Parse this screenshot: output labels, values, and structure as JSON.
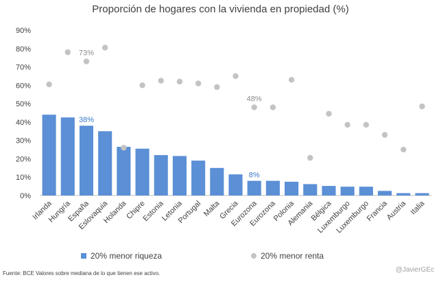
{
  "title": "Proporción de hogares con la vivienda en propiedad  (%)",
  "source": "Fuente: BCE Valores sobre mediana  de lo que tienen ese activo.",
  "credit": "@JavierGEc",
  "legend": {
    "bar_label": "20% menor riqueza",
    "dot_label": "20% menor renta"
  },
  "colors": {
    "bar": "#5b8fd6",
    "dot": "#c3c3c3",
    "axis_text": "#404040",
    "highlight": "#3a7bc8"
  },
  "chart_data": {
    "type": "bar",
    "title": "Proporción de hogares con la vivienda en propiedad  (%)",
    "xlabel": "",
    "ylabel": "",
    "ylim": [
      0,
      90
    ],
    "yticks": [
      "0%",
      "10%",
      "20%",
      "30%",
      "40%",
      "50%",
      "60%",
      "70%",
      "80%",
      "90%"
    ],
    "grid": false,
    "legend_position": "bottom",
    "categories": [
      "Irlanda",
      "Hungría",
      "España",
      "Eslovaquia",
      "Holanda",
      "Chipre",
      "Estonia",
      "Letonia",
      "Portugal",
      "Malta",
      "Grecia",
      "Eurozona",
      "Eurozona",
      "Polonia",
      "Alemania",
      "Bélgica",
      "Luxemburgo",
      "Luxemburgo",
      "Francia",
      "Austria",
      "Italia"
    ],
    "series": [
      {
        "name": "20% menor riqueza",
        "type": "bar",
        "values": [
          44,
          42.5,
          38,
          35,
          26.5,
          25.5,
          22,
          21.5,
          19,
          15,
          11.5,
          8,
          8,
          7.5,
          6.2,
          5.2,
          4.8,
          4.8,
          2.5,
          1.3,
          1.3
        ]
      },
      {
        "name": "20% menor renta",
        "type": "scatter",
        "values": [
          60.5,
          78,
          73,
          80.5,
          26,
          60,
          62.5,
          62,
          61,
          59,
          65,
          48,
          48,
          63,
          20.5,
          44.5,
          38.5,
          38.5,
          33,
          25,
          48.5
        ]
      }
    ],
    "annotations": [
      {
        "text": "38%",
        "series": "20% menor riqueza",
        "index": 2
      },
      {
        "text": "8%",
        "series": "20% menor riqueza",
        "index": 11
      },
      {
        "text": "73%",
        "series": "20% menor renta",
        "index": 2
      },
      {
        "text": "48%",
        "series": "20% menor renta",
        "index": 11
      }
    ]
  }
}
